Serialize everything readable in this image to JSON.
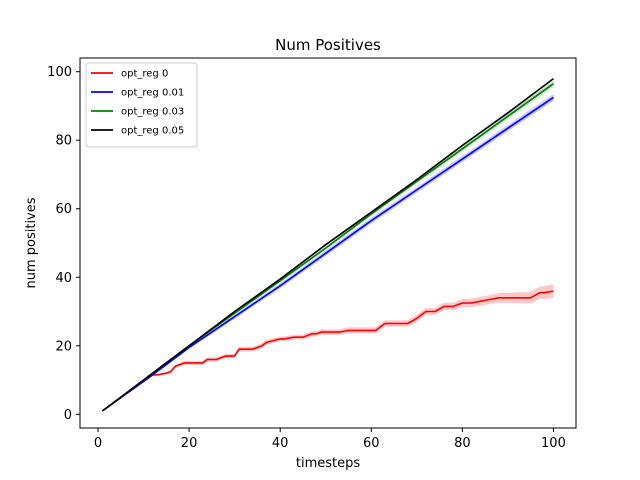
{
  "chart_data": {
    "type": "line",
    "title": "Num Positives",
    "xlabel": "timesteps",
    "ylabel": "num positives",
    "xlim": [
      -3.95,
      104.95
    ],
    "ylim": [
      -4,
      104
    ],
    "xticks": [
      0,
      20,
      40,
      60,
      80,
      100
    ],
    "yticks": [
      0,
      20,
      40,
      60,
      80,
      100
    ],
    "grid": false,
    "legend_position": "top-left",
    "series": [
      {
        "name": "opt_reg 0",
        "color": "#ff0000",
        "band_color": "#ff0000",
        "x": [
          1,
          12,
          13,
          15,
          16,
          17,
          19,
          23,
          24,
          26,
          28,
          30,
          31,
          34,
          36,
          37,
          40,
          41,
          43,
          44,
          45,
          46,
          47,
          48,
          49,
          50,
          51,
          53,
          55,
          57,
          59,
          61,
          63,
          64,
          65,
          66,
          68,
          70,
          72,
          74,
          76,
          78,
          80,
          82,
          84,
          86,
          88,
          89,
          90,
          91,
          92,
          93,
          95,
          97,
          98,
          100
        ],
        "y": [
          1,
          11.5,
          11.5,
          12,
          12.5,
          14,
          15,
          15,
          16,
          16,
          17,
          17,
          19,
          19,
          20,
          21,
          22,
          22,
          22.5,
          22.5,
          22.5,
          23,
          23.5,
          23.5,
          24,
          24,
          24,
          24,
          24.5,
          24.5,
          24.5,
          24.5,
          26.5,
          26.5,
          26.5,
          26.5,
          26.5,
          28,
          30,
          30,
          31.5,
          31.5,
          32.5,
          32.5,
          33,
          33.5,
          34,
          34,
          34,
          34,
          34,
          34,
          34,
          35.5,
          35.5,
          36
        ],
        "band": [
          0,
          0,
          0.3,
          0.3,
          0.5,
          0.5,
          0.6,
          0.6,
          0.6,
          0.6,
          0.6,
          0.6,
          0.7,
          0.7,
          0.7,
          0.7,
          0.7,
          0.7,
          0.7,
          0.7,
          0.7,
          0.8,
          0.8,
          0.8,
          0.8,
          0.8,
          0.8,
          0.8,
          0.9,
          0.9,
          0.9,
          0.9,
          0.9,
          0.9,
          0.9,
          0.9,
          0.9,
          1.0,
          1.0,
          1.0,
          1.1,
          1.1,
          1.2,
          1.2,
          1.3,
          1.3,
          1.4,
          1.4,
          1.5,
          1.5,
          1.6,
          1.6,
          1.7,
          1.8,
          1.9,
          2.0
        ]
      },
      {
        "name": "opt_reg 0.01",
        "color": "#0000ff",
        "band_color": "#0000ff",
        "x": [
          1,
          12,
          20,
          30,
          40,
          50,
          60,
          70,
          80,
          90,
          100
        ],
        "y": [
          1,
          11.5,
          19.5,
          28.5,
          37.5,
          47,
          56.5,
          65.5,
          74.5,
          83.5,
          92.5
        ],
        "band": [
          0,
          0.2,
          0.4,
          0.6,
          0.7,
          0.8,
          0.8,
          0.8,
          0.9,
          0.9,
          1.0
        ]
      },
      {
        "name": "opt_reg 0.03",
        "color": "#008000",
        "band_color": "#008000",
        "x": [
          1,
          12,
          20,
          30,
          40,
          50,
          60,
          70,
          80,
          90,
          100
        ],
        "y": [
          1,
          12,
          20,
          29.5,
          39,
          48.5,
          58.5,
          68,
          77.5,
          87,
          96.5
        ],
        "band": [
          0,
          0.2,
          0.3,
          0.4,
          0.5,
          0.5,
          0.6,
          0.6,
          0.7,
          0.8,
          0.9
        ]
      },
      {
        "name": "opt_reg 0.05",
        "color": "#000000",
        "band_color": "#000000",
        "x": [
          1,
          12,
          20,
          30,
          40,
          50,
          60,
          70,
          80,
          90,
          100
        ],
        "y": [
          1,
          12,
          20,
          30,
          39.5,
          49.5,
          59,
          68.5,
          78.5,
          88,
          98
        ],
        "band": [
          0,
          0,
          0,
          0,
          0,
          0,
          0,
          0,
          0,
          0,
          0
        ]
      }
    ]
  }
}
